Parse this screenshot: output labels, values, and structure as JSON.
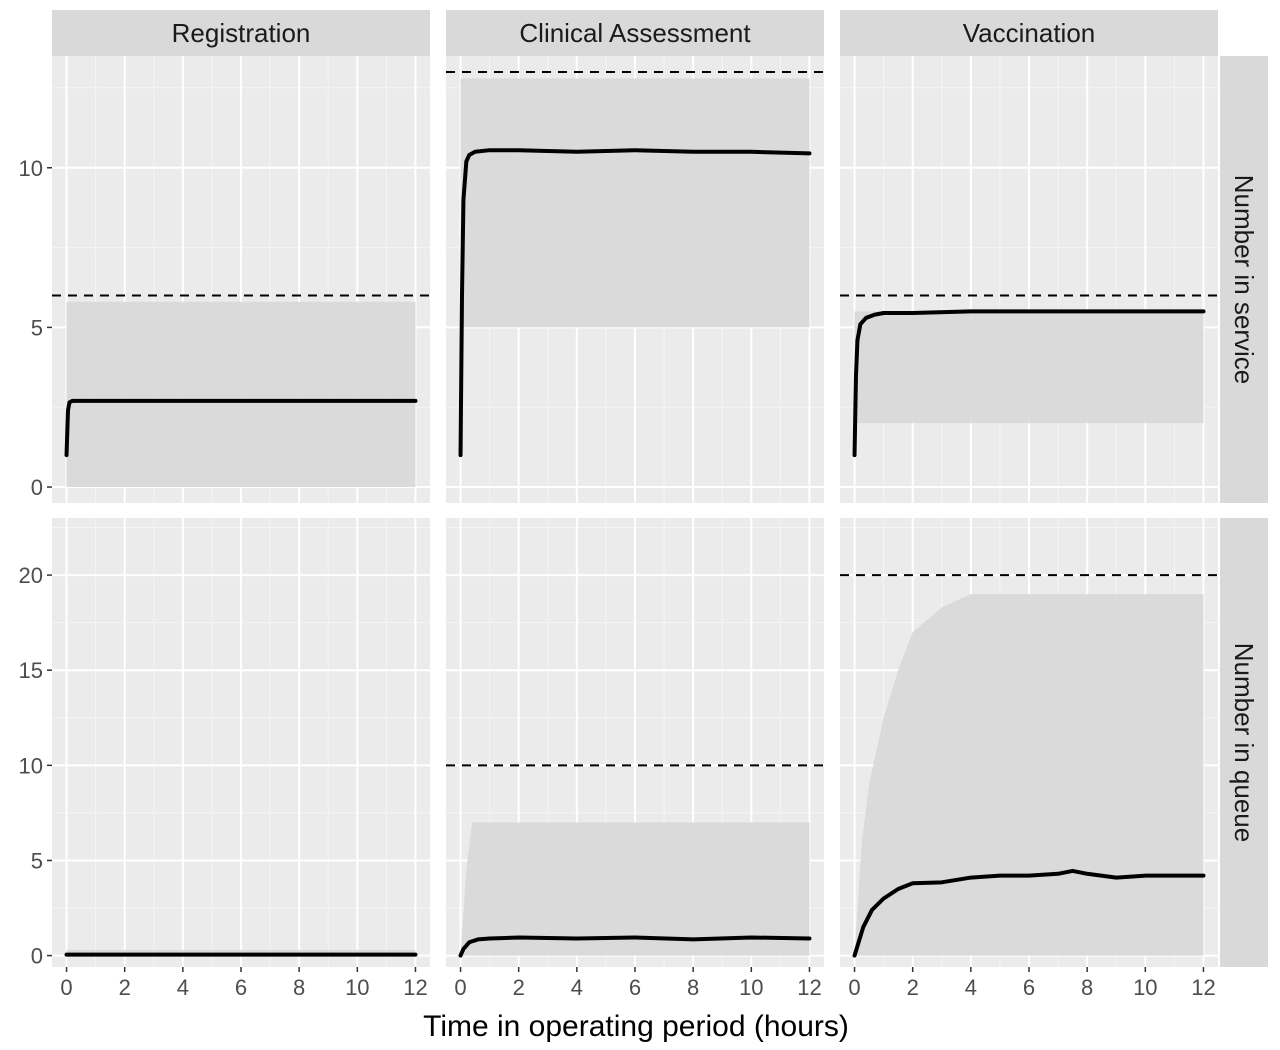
{
  "chart_data": {
    "type": "line",
    "xlabel": "Time in operating period (hours)",
    "x_ticks": [
      0,
      2,
      4,
      6,
      8,
      10,
      12
    ],
    "xlim": [
      -0.5,
      12.5
    ],
    "columns": [
      "Registration",
      "Clinical Assessment",
      "Vaccination"
    ],
    "rows": [
      {
        "label": "Number in service",
        "ylim": [
          -0.5,
          13.5
        ],
        "y_ticks": [
          0,
          5,
          10
        ]
      },
      {
        "label": "Number in queue",
        "ylim": [
          -0.6,
          23.0
        ],
        "y_ticks": [
          0,
          5,
          10,
          15,
          20
        ]
      }
    ],
    "panels": [
      {
        "row": 0,
        "col": 0,
        "capacity": 6,
        "band": {
          "x": [
            0,
            12
          ],
          "lower": [
            0,
            0
          ],
          "upper": [
            5.8,
            5.8
          ]
        },
        "mean": {
          "x": [
            0,
            0.05,
            0.1,
            0.2,
            12
          ],
          "y": [
            1.0,
            2.4,
            2.65,
            2.7,
            2.7
          ]
        }
      },
      {
        "row": 0,
        "col": 1,
        "capacity": 13,
        "band": {
          "x": [
            0,
            12
          ],
          "lower": [
            5,
            5
          ],
          "upper": [
            12.8,
            12.8
          ]
        },
        "mean": {
          "x": [
            0,
            0.05,
            0.1,
            0.2,
            0.3,
            0.5,
            1,
            2,
            4,
            6,
            8,
            10,
            12
          ],
          "y": [
            1.0,
            6.0,
            9.0,
            10.2,
            10.4,
            10.5,
            10.55,
            10.55,
            10.5,
            10.55,
            10.5,
            10.5,
            10.45
          ]
        }
      },
      {
        "row": 0,
        "col": 2,
        "capacity": 6,
        "band": {
          "x": [
            0,
            12
          ],
          "lower": [
            2,
            2
          ],
          "upper": [
            5.5,
            5.5
          ]
        },
        "mean": {
          "x": [
            0,
            0.05,
            0.1,
            0.2,
            0.4,
            0.7,
            1,
            2,
            4,
            6,
            8,
            10,
            12
          ],
          "y": [
            1.0,
            3.5,
            4.6,
            5.1,
            5.3,
            5.4,
            5.45,
            5.45,
            5.5,
            5.5,
            5.5,
            5.5,
            5.5
          ]
        }
      },
      {
        "row": 1,
        "col": 0,
        "capacity": null,
        "band": {
          "x": [
            0,
            12
          ],
          "lower": [
            0,
            0
          ],
          "upper": [
            0.3,
            0.3
          ]
        },
        "mean": {
          "x": [
            0,
            12
          ],
          "y": [
            0.05,
            0.05
          ]
        }
      },
      {
        "row": 1,
        "col": 1,
        "capacity": 10,
        "band": {
          "x": [
            0,
            0.2,
            0.4,
            12
          ],
          "lower": [
            0,
            0,
            0,
            0
          ],
          "upper": [
            0,
            4.5,
            7.0,
            7.0
          ]
        },
        "mean": {
          "x": [
            0,
            0.1,
            0.3,
            0.6,
            1,
            2,
            4,
            6,
            8,
            10,
            12
          ],
          "y": [
            0,
            0.35,
            0.7,
            0.85,
            0.9,
            0.95,
            0.9,
            0.95,
            0.85,
            0.95,
            0.9
          ]
        }
      },
      {
        "row": 1,
        "col": 2,
        "capacity": 20,
        "band": {
          "x": [
            0,
            0.25,
            0.5,
            1,
            1.5,
            2,
            3,
            4,
            5,
            12
          ],
          "lower": [
            0,
            0,
            0,
            0,
            0,
            0,
            0,
            0,
            0,
            0
          ],
          "upper": [
            0,
            6,
            9,
            12.5,
            15,
            17,
            18.3,
            19,
            19,
            19
          ]
        },
        "mean": {
          "x": [
            0,
            0.1,
            0.3,
            0.6,
            1,
            1.5,
            2,
            3,
            4,
            5,
            6,
            7,
            7.5,
            8,
            9,
            10,
            11,
            12
          ],
          "y": [
            0,
            0.5,
            1.5,
            2.4,
            3.0,
            3.5,
            3.8,
            3.85,
            4.1,
            4.2,
            4.2,
            4.3,
            4.45,
            4.3,
            4.1,
            4.2,
            4.2,
            4.2
          ]
        }
      }
    ]
  }
}
